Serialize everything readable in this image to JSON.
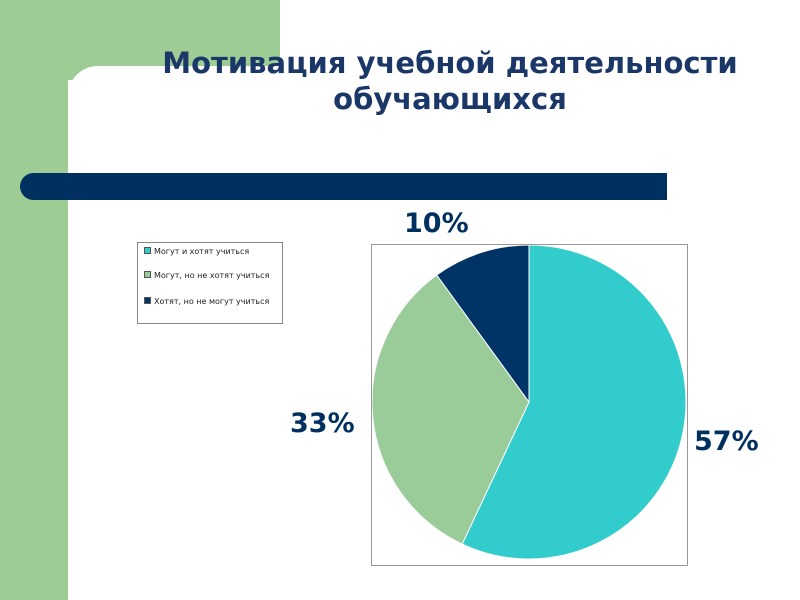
{
  "title": "Мотивация учебной деятельности обучающихся",
  "chart_data": {
    "type": "pie",
    "title": "Мотивация учебной деятельности обучающихся",
    "categories": [
      "Могут и хотят учиться",
      "Могут, но не хотят учиться",
      "Хотят, но не могут учиться"
    ],
    "values": [
      57,
      33,
      10
    ],
    "labels": [
      "57%",
      "33%",
      "10%"
    ],
    "colors": [
      "#33cccc",
      "#99cc99",
      "#003366"
    ],
    "legend_position": "left"
  }
}
